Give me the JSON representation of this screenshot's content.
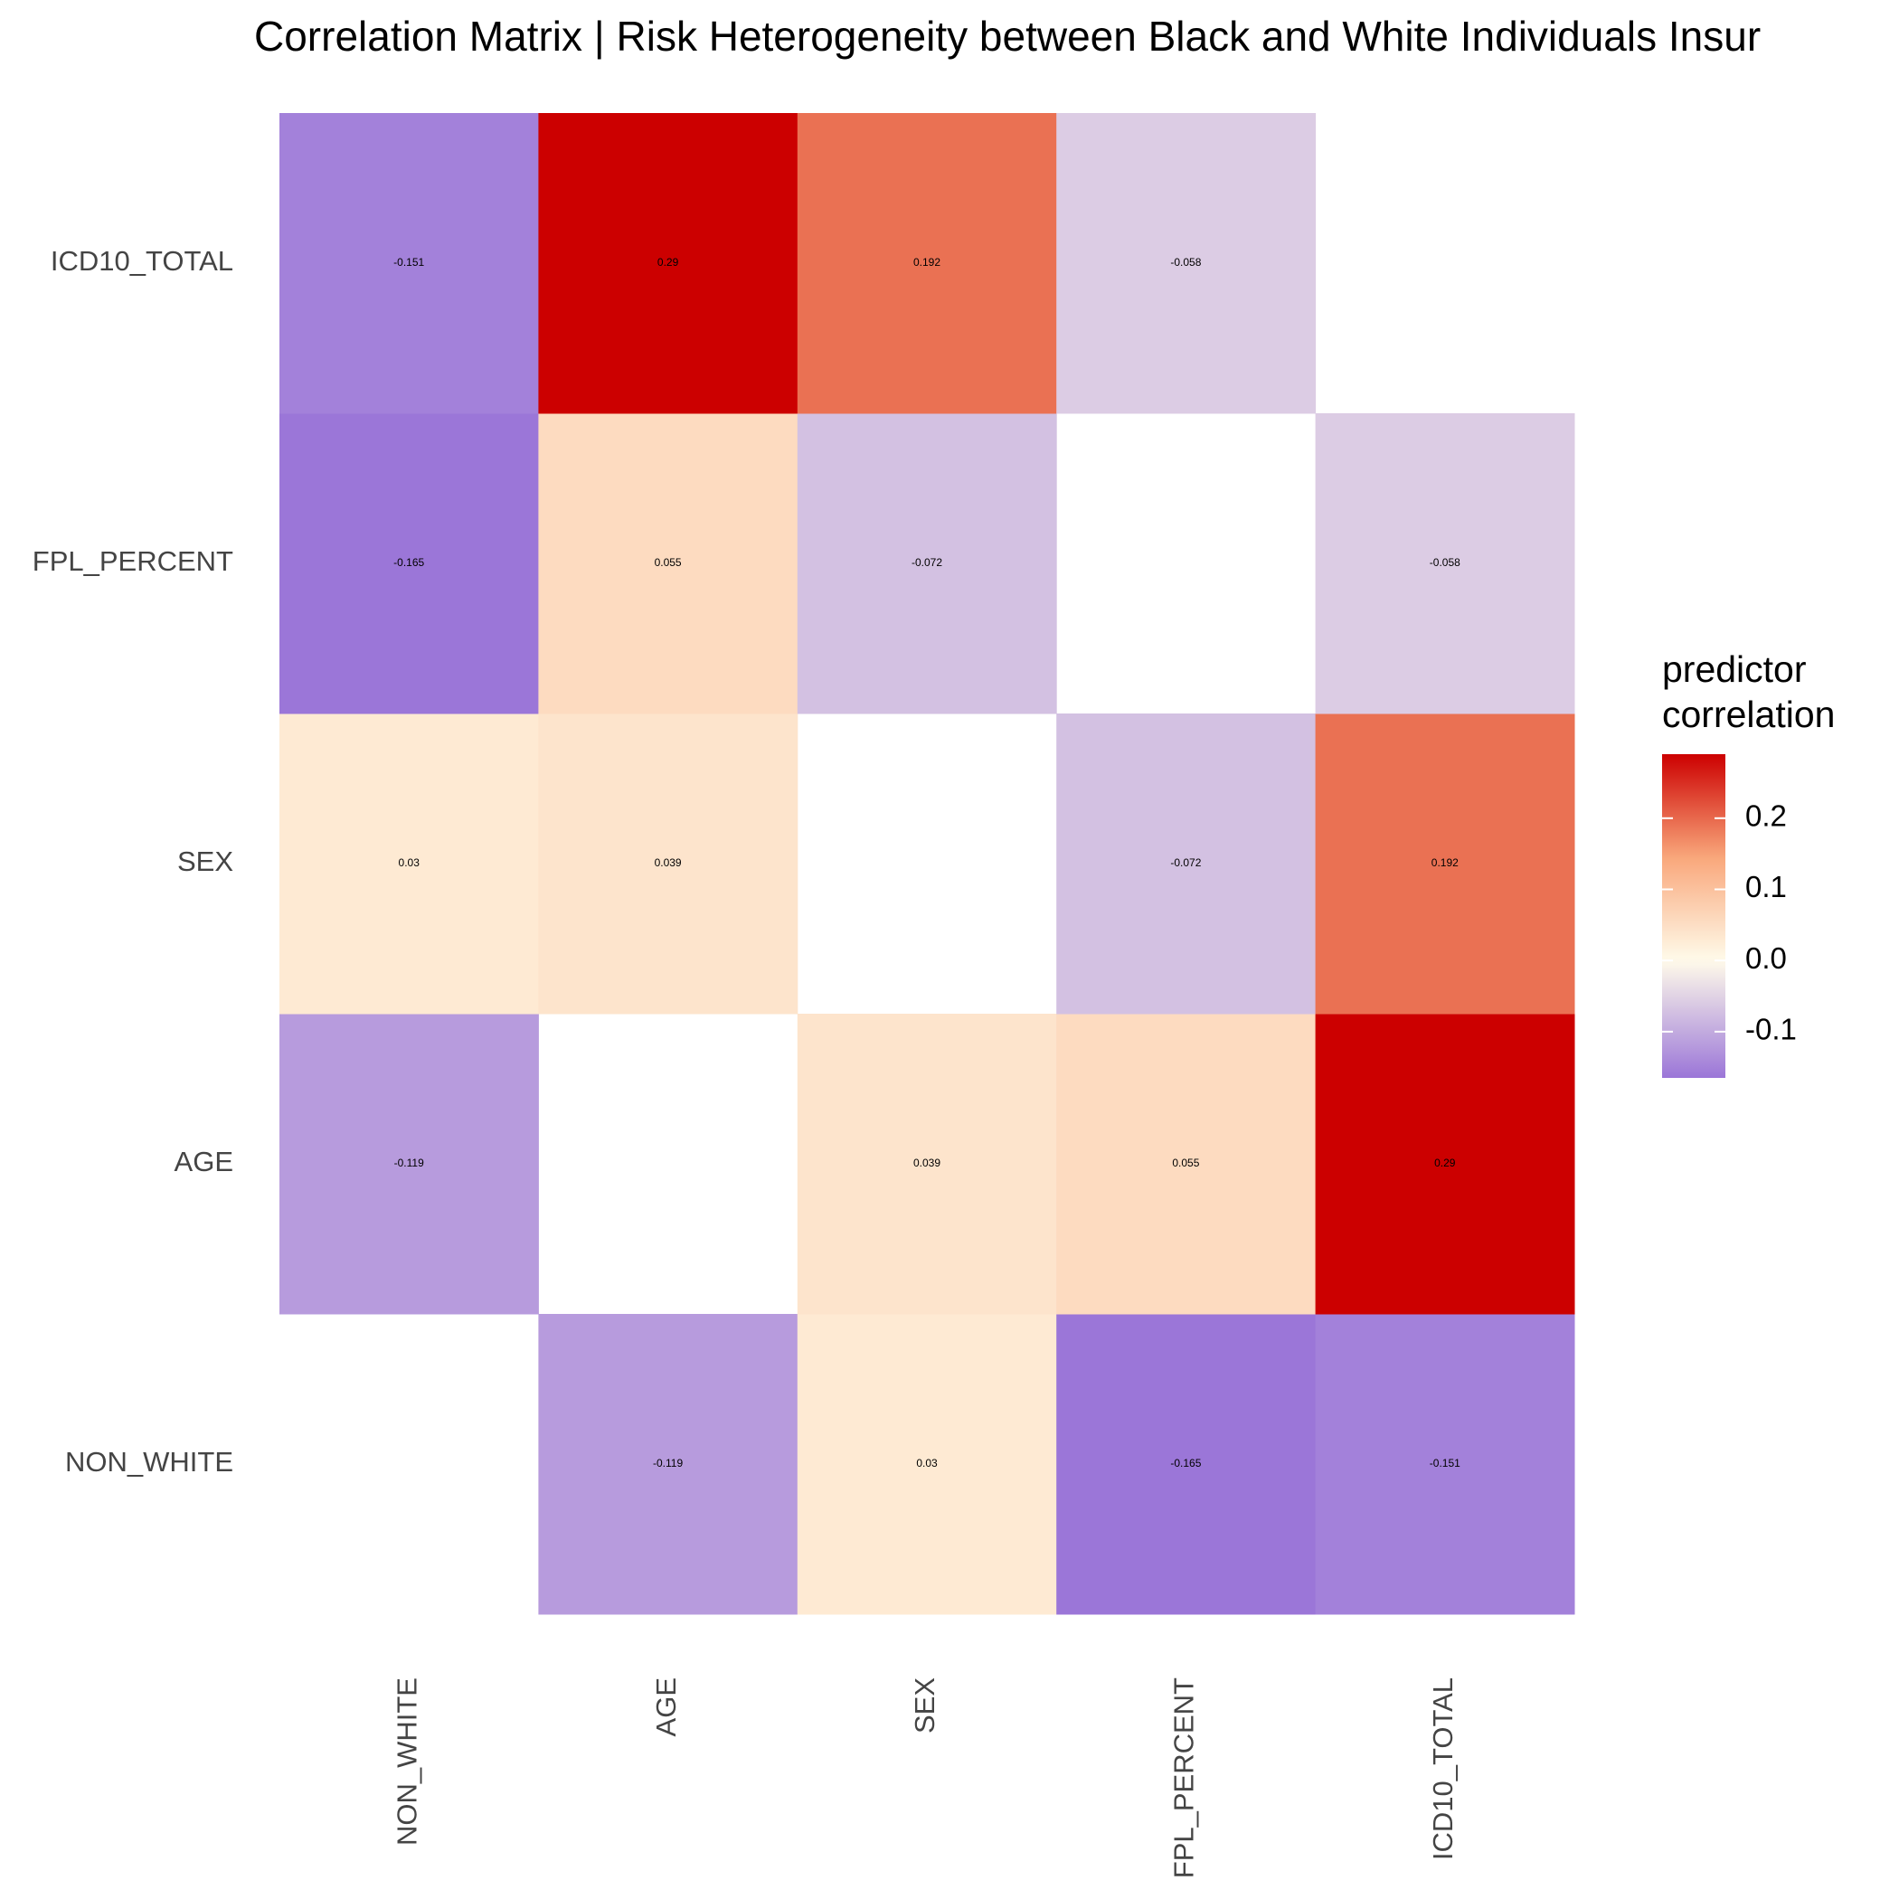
{
  "chart_data": {
    "type": "heatmap",
    "title": "Correlation Matrix | Risk Heterogeneity between Black and White Individuals Insur",
    "x": [
      "NON_WHITE",
      "AGE",
      "SEX",
      "FPL_PERCENT",
      "ICD10_TOTAL"
    ],
    "y": [
      "NON_WHITE",
      "AGE",
      "SEX",
      "FPL_PERCENT",
      "ICD10_TOTAL"
    ],
    "values": [
      [
        null,
        -0.119,
        0.03,
        -0.165,
        -0.151
      ],
      [
        -0.119,
        null,
        0.039,
        0.055,
        0.29
      ],
      [
        0.03,
        0.039,
        null,
        -0.072,
        0.192
      ],
      [
        -0.165,
        0.055,
        -0.072,
        null,
        -0.058
      ],
      [
        -0.151,
        0.29,
        0.192,
        -0.058,
        null
      ]
    ],
    "legend_title": [
      "predictor",
      "correlation"
    ],
    "clim": [
      -0.165,
      0.29
    ],
    "cticks": [
      -0.1,
      {
        "value": 0,
        "label": "0.0"
      },
      0.1,
      0.2
    ],
    "colors_negative": [
      "#9b76d8",
      "#fffbea"
    ],
    "colors_positive": [
      "#fffbea",
      "#f9a77b",
      "#cc0000"
    ],
    "legend_position": "right"
  }
}
